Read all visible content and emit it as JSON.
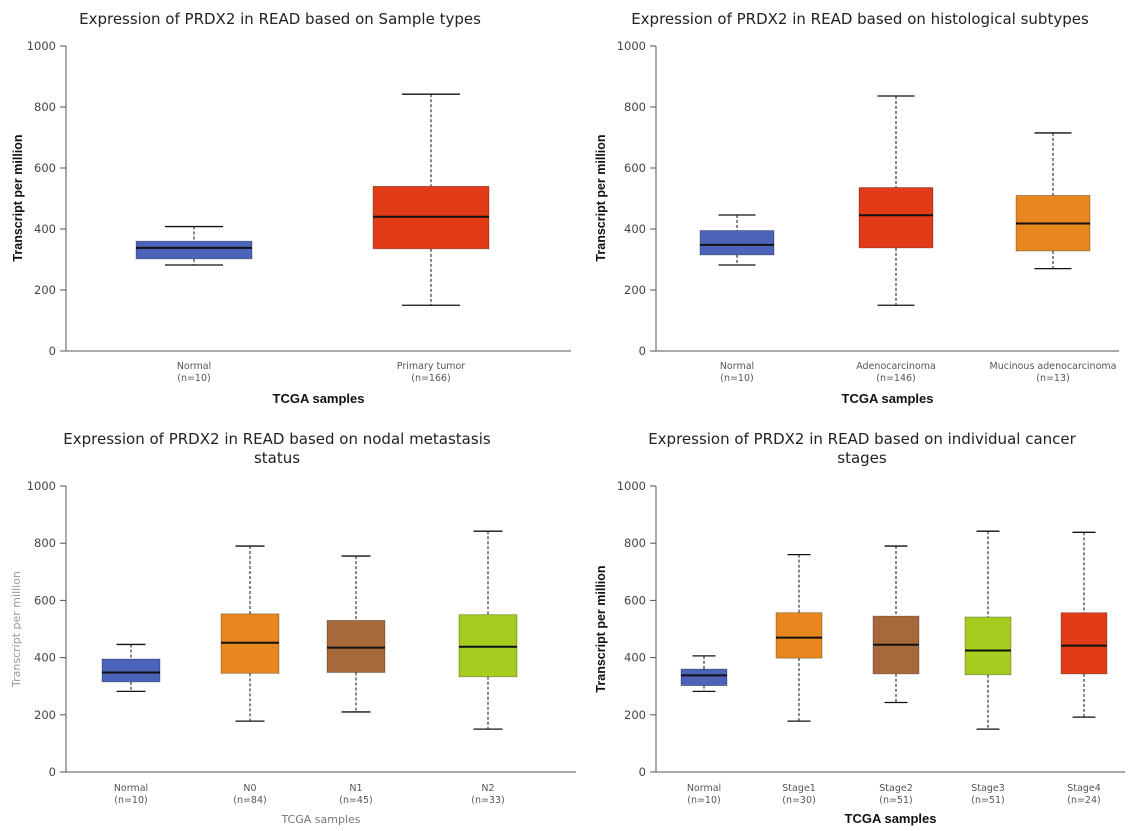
{
  "chart_data": [
    {
      "type": "boxplot",
      "title": [
        "Expression of PRDX2 in READ based on Sample types"
      ],
      "xlabel": "TCGA samples",
      "ylabel": "Transcript per million",
      "ylim": [
        0,
        1000
      ],
      "yticks": [
        0,
        200,
        400,
        600,
        800,
        1000
      ],
      "groups": [
        {
          "label": "Normal",
          "n": "(n=10)",
          "color": "#4b63b8",
          "min": 282,
          "q1": 302,
          "median": 338,
          "q3": 360,
          "max": 408
        },
        {
          "label": "Primary tumor",
          "n": "(n=166)",
          "color": "#e13c17",
          "min": 150,
          "q1": 335,
          "median": 440,
          "q3": 540,
          "max": 842
        }
      ]
    },
    {
      "type": "boxplot",
      "title": [
        "Expression of PRDX2 in READ based on histological subtypes"
      ],
      "xlabel": "TCGA samples",
      "ylabel": "Transcript per million",
      "ylim": [
        0,
        1000
      ],
      "yticks": [
        0,
        200,
        400,
        600,
        800,
        1000
      ],
      "groups": [
        {
          "label": "Normal",
          "n": "(n=10)",
          "color": "#4b63b8",
          "min": 282,
          "q1": 315,
          "median": 348,
          "q3": 395,
          "max": 446
        },
        {
          "label": "Adenocarcinoma",
          "n": "(n=146)",
          "color": "#e13c17",
          "min": 150,
          "q1": 338,
          "median": 445,
          "q3": 536,
          "max": 836
        },
        {
          "label": "Mucinous adenocarcinoma",
          "n": "(n=13)",
          "color": "#e8871e",
          "min": 270,
          "q1": 328,
          "median": 418,
          "q3": 510,
          "max": 715
        }
      ]
    },
    {
      "type": "boxplot",
      "title": [
        "Expression of PRDX2 in READ based on nodal metastasis",
        "status"
      ],
      "xlabel": "TCGA samples",
      "ylabel": "Transcript per million",
      "ylim": [
        0,
        1000
      ],
      "yticks": [
        0,
        200,
        400,
        600,
        800,
        1000
      ],
      "groups": [
        {
          "label": "Normal",
          "n": "(n=10)",
          "color": "#4b63b8",
          "min": 282,
          "q1": 315,
          "median": 348,
          "q3": 395,
          "max": 446
        },
        {
          "label": "N0",
          "n": "(n=84)",
          "color": "#e8871e",
          "min": 178,
          "q1": 345,
          "median": 452,
          "q3": 553,
          "max": 790
        },
        {
          "label": "N1",
          "n": "(n=45)",
          "color": "#a8693a",
          "min": 210,
          "q1": 348,
          "median": 435,
          "q3": 530,
          "max": 755
        },
        {
          "label": "N2",
          "n": "(n=33)",
          "color": "#a5cc1f",
          "min": 150,
          "q1": 333,
          "median": 438,
          "q3": 550,
          "max": 842
        }
      ]
    },
    {
      "type": "boxplot",
      "title": [
        "Expression of PRDX2 in READ based on individual cancer",
        "stages"
      ],
      "xlabel": "TCGA samples",
      "ylabel": "Transcript per million",
      "ylim": [
        0,
        1000
      ],
      "yticks": [
        0,
        200,
        400,
        600,
        800,
        1000
      ],
      "groups": [
        {
          "label": "Normal",
          "n": "(n=10)",
          "color": "#4b63b8",
          "min": 282,
          "q1": 302,
          "median": 338,
          "q3": 360,
          "max": 406
        },
        {
          "label": "Stage1",
          "n": "(n=30)",
          "color": "#e8871e",
          "min": 178,
          "q1": 398,
          "median": 470,
          "q3": 557,
          "max": 760
        },
        {
          "label": "Stage2",
          "n": "(n=51)",
          "color": "#a8693a",
          "min": 243,
          "q1": 343,
          "median": 445,
          "q3": 545,
          "max": 790
        },
        {
          "label": "Stage3",
          "n": "(n=51)",
          "color": "#a5cc1f",
          "min": 150,
          "q1": 340,
          "median": 425,
          "q3": 542,
          "max": 842
        },
        {
          "label": "Stage4",
          "n": "(n=24)",
          "color": "#e13c17",
          "min": 192,
          "q1": 343,
          "median": 442,
          "q3": 557,
          "max": 838
        }
      ]
    }
  ]
}
